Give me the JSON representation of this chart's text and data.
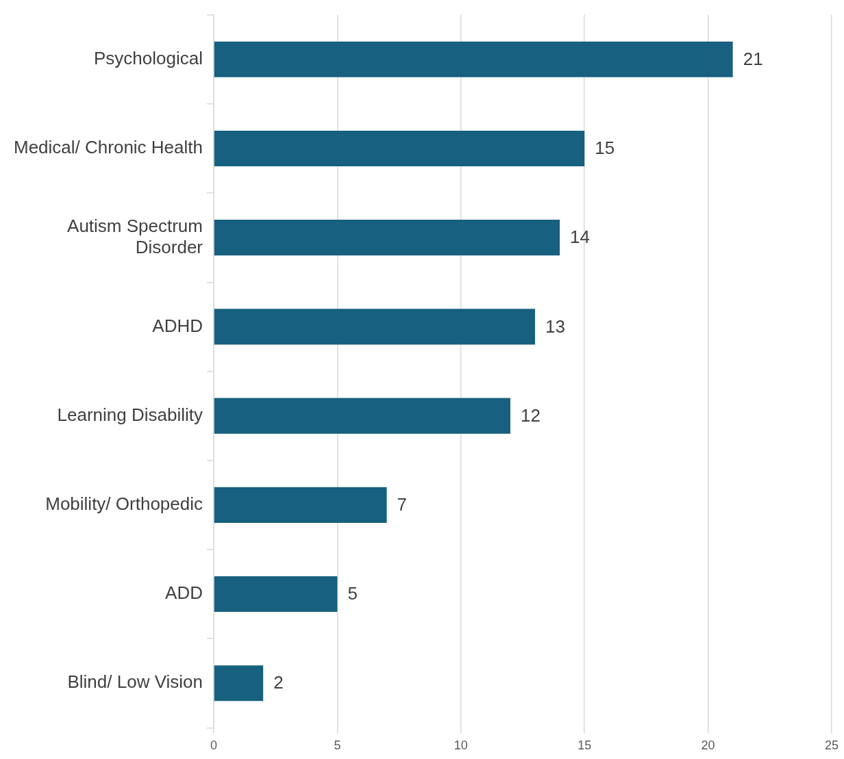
{
  "chart_data": {
    "type": "bar",
    "orientation": "horizontal",
    "categories": [
      "Psychological",
      "Medical/ Chronic Health",
      "Autism Spectrum Disorder",
      "ADHD",
      "Learning Disability",
      "Mobility/ Orthopedic",
      "ADD",
      "Blind/ Low Vision"
    ],
    "values": [
      21,
      15,
      14,
      13,
      12,
      7,
      5,
      2
    ],
    "color": "#17607f",
    "xlim": [
      0,
      25
    ],
    "xticks": [
      0,
      5,
      10,
      15,
      20,
      25
    ],
    "grid": "x",
    "data_labels": true
  }
}
